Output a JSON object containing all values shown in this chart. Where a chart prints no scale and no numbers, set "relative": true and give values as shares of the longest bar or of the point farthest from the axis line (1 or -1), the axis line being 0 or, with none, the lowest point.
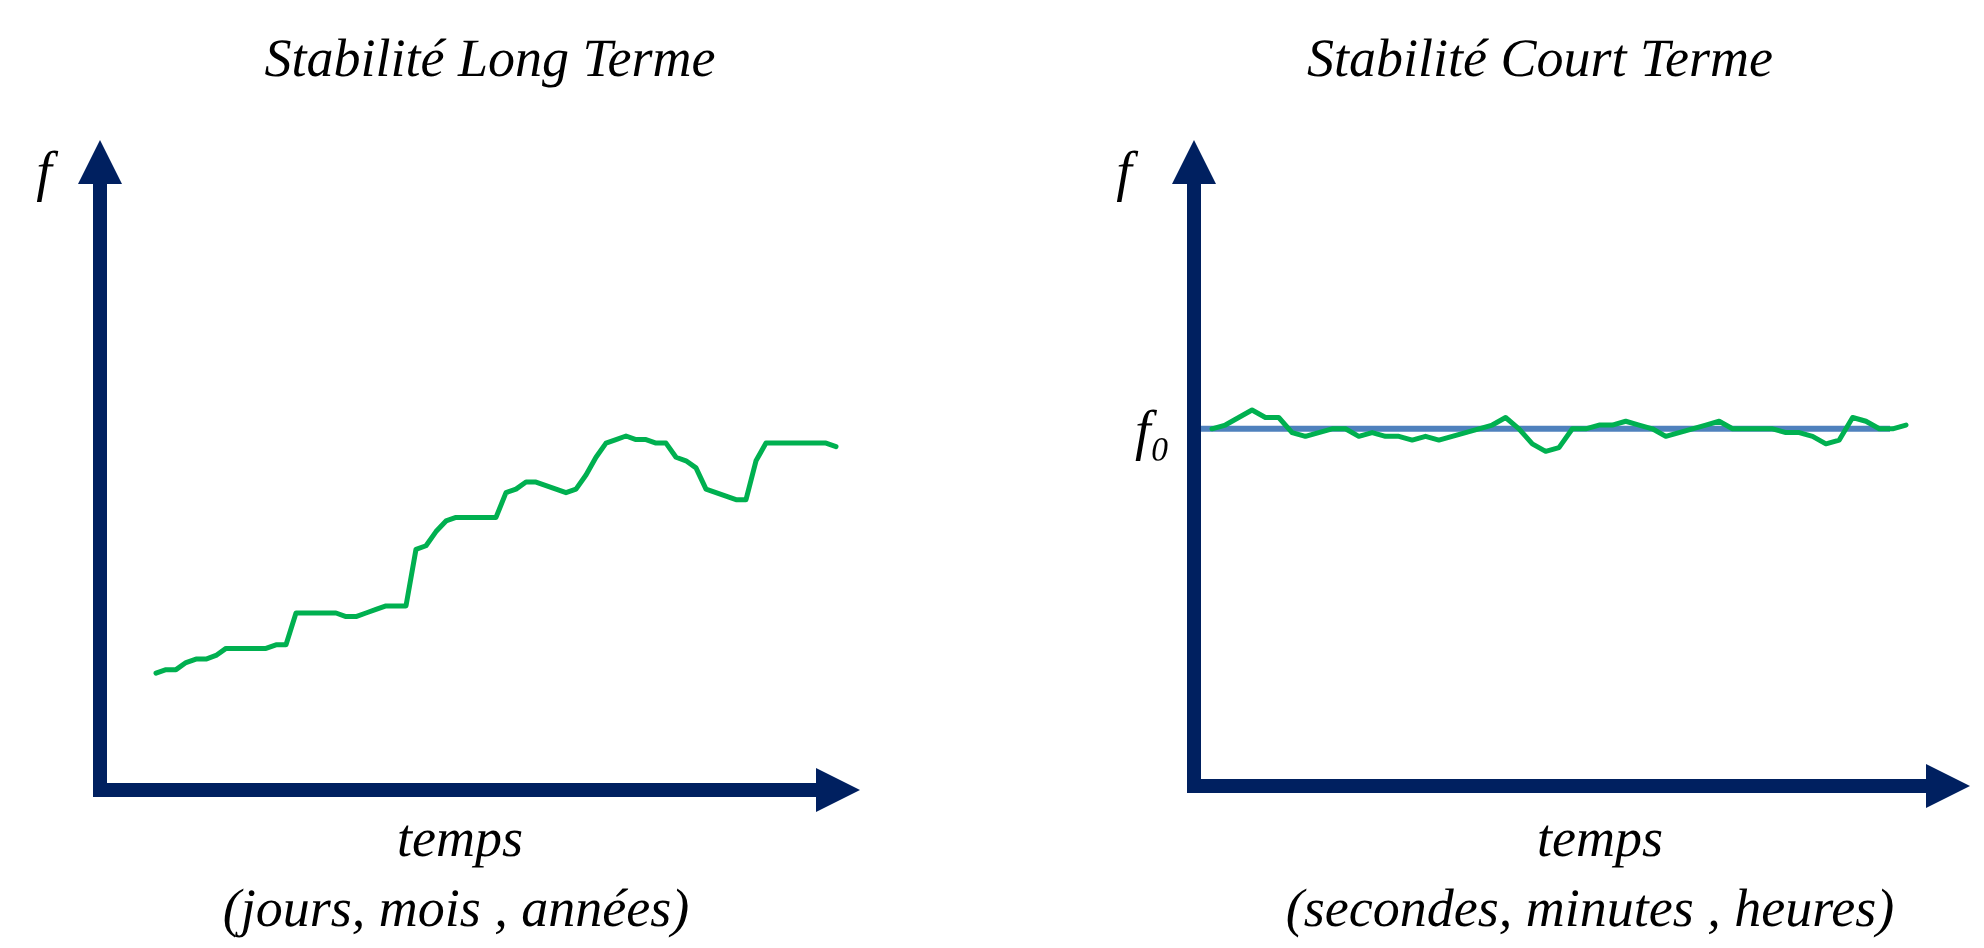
{
  "chart_data": [
    {
      "type": "line",
      "title": "Stabilité Long Terme",
      "xlabel": "temps",
      "ylabel": "f",
      "annotations": [
        "(jours, mois , années)"
      ],
      "relative": true,
      "categories": [
        null,
        null,
        null,
        null,
        null,
        null,
        null,
        null,
        null,
        null,
        null,
        null,
        null,
        null,
        null,
        null,
        null,
        null,
        null,
        null,
        null,
        null,
        null,
        null,
        null,
        null,
        null,
        null,
        null,
        null,
        null,
        null,
        null,
        null,
        null,
        null,
        null,
        null,
        null,
        null,
        null,
        null,
        null,
        null,
        null,
        null,
        null,
        null,
        null,
        null,
        null,
        null,
        null,
        null,
        null,
        null,
        null,
        null,
        null,
        null,
        null,
        null,
        null,
        null,
        null,
        null,
        null,
        null,
        null
      ],
      "series": [
        {
          "color": "#00b050",
          "values": [
            0.33,
            0.34,
            0.34,
            0.36,
            0.37,
            0.37,
            0.38,
            0.4,
            0.4,
            0.4,
            0.4,
            0.4,
            0.41,
            0.41,
            0.5,
            0.5,
            0.5,
            0.5,
            0.5,
            0.49,
            0.49,
            0.5,
            0.51,
            0.52,
            0.52,
            0.52,
            0.68,
            0.69,
            0.73,
            0.76,
            0.77,
            0.77,
            0.77,
            0.77,
            0.77,
            0.84,
            0.85,
            0.87,
            0.87,
            0.86,
            0.85,
            0.84,
            0.85,
            0.89,
            0.94,
            0.98,
            0.99,
            1.0,
            0.99,
            0.99,
            0.98,
            0.98,
            0.94,
            0.93,
            0.91,
            0.85,
            0.84,
            0.83,
            0.82,
            0.82,
            0.93,
            0.98,
            0.98,
            0.98,
            0.98,
            0.98,
            0.98,
            0.98,
            0.97
          ]
        }
      ]
    },
    {
      "type": "line",
      "title": "Stabilité Court Terme",
      "xlabel": "temps",
      "ylabel": "f",
      "annotations": [
        "(secondes, minutes , heures)"
      ],
      "relative": true,
      "categories": [
        null,
        null,
        null,
        null,
        null,
        null,
        null,
        null,
        null,
        null,
        null,
        null,
        null,
        null,
        null,
        null,
        null,
        null,
        null,
        null,
        null,
        null,
        null,
        null,
        null,
        null,
        null,
        null,
        null,
        null,
        null,
        null,
        null,
        null,
        null,
        null,
        null,
        null,
        null,
        null,
        null,
        null,
        null,
        null,
        null,
        null,
        null,
        null,
        null,
        null,
        null,
        null,
        null
      ],
      "ref_lines": [
        {
          "axis": "y",
          "value": 0.95,
          "label": "f₀",
          "color": "#4f81bd"
        }
      ],
      "series": [
        {
          "color": "#00b050",
          "values": [
            0.95,
            0.96,
            0.98,
            1.0,
            0.98,
            0.98,
            0.94,
            0.93,
            0.94,
            0.95,
            0.95,
            0.93,
            0.94,
            0.93,
            0.93,
            0.92,
            0.93,
            0.92,
            0.93,
            0.94,
            0.95,
            0.96,
            0.98,
            0.95,
            0.91,
            0.89,
            0.9,
            0.95,
            0.95,
            0.96,
            0.96,
            0.97,
            0.96,
            0.95,
            0.93,
            0.94,
            0.95,
            0.96,
            0.97,
            0.95,
            0.95,
            0.95,
            0.95,
            0.94,
            0.94,
            0.93,
            0.91,
            0.92,
            0.98,
            0.97,
            0.95,
            0.95,
            0.96
          ]
        }
      ]
    }
  ]
}
